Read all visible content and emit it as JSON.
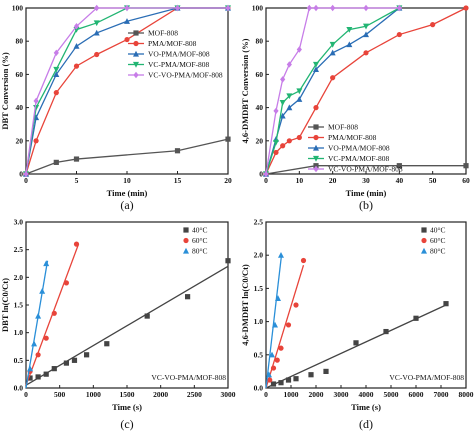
{
  "colors": {
    "MOF-808": "#555555",
    "PMA/MOF-808": "#e8443a",
    "VO-PMA/MOF-808": "#2a6db5",
    "VC-PMA/MOF-808": "#22b573",
    "VC-VO-PMA/MOF-808": "#c77de8",
    "40": "#444444",
    "60": "#e8443a",
    "80": "#2a8fd8"
  },
  "chart_data": [
    {
      "id": "a",
      "panel_label": "(a)",
      "type": "line",
      "xlabel": "Time (min)",
      "ylabel": "DBT Conversion (%)",
      "xlim": [
        0,
        20
      ],
      "ylim": [
        0,
        100
      ],
      "xticks": [
        0,
        5,
        10,
        15,
        20
      ],
      "yticks": [
        0,
        20,
        40,
        60,
        80,
        100
      ],
      "legend_position": "right",
      "series": [
        {
          "name": "MOF-808",
          "marker": "square",
          "color_key": "MOF-808",
          "x": [
            0,
            3,
            5,
            15,
            20
          ],
          "y": [
            0,
            7,
            9,
            14,
            21
          ]
        },
        {
          "name": "PMA/MOF-808",
          "marker": "circle",
          "color_key": "PMA/MOF-808",
          "x": [
            0,
            1,
            3,
            5,
            7,
            10,
            15,
            20
          ],
          "y": [
            0,
            20,
            49,
            65,
            72,
            81,
            100,
            100
          ]
        },
        {
          "name": "VO-PMA/MOF-808",
          "marker": "triangle-up",
          "color_key": "VO-PMA/MOF-808",
          "x": [
            0,
            1,
            3,
            5,
            7,
            10,
            15,
            20
          ],
          "y": [
            0,
            34,
            60,
            77,
            85,
            92,
            100,
            100
          ]
        },
        {
          "name": "VC-PMA/MOF-808",
          "marker": "triangle-down",
          "color_key": "VC-PMA/MOF-808",
          "x": [
            0,
            1,
            3,
            5,
            7,
            10,
            15,
            20
          ],
          "y": [
            0,
            40,
            63,
            87,
            91,
            100,
            100,
            100
          ]
        },
        {
          "name": "VC-VO-PMA/MOF-808",
          "marker": "diamond",
          "color_key": "VC-VO-PMA/MOF-808",
          "x": [
            0,
            1,
            3,
            5,
            7,
            10,
            15,
            20
          ],
          "y": [
            0,
            44,
            73,
            89,
            100,
            100,
            100,
            100
          ]
        }
      ]
    },
    {
      "id": "b",
      "panel_label": "(b)",
      "type": "line",
      "xlabel": "Time (min)",
      "ylabel": "4,6-DMDBT Conversion (%)",
      "xlim": [
        0,
        60
      ],
      "ylim": [
        0,
        100
      ],
      "xticks": [
        0,
        10,
        20,
        30,
        40,
        50,
        60
      ],
      "yticks": [
        0,
        20,
        40,
        60,
        80,
        100
      ],
      "legend_position": "bottom-right",
      "series": [
        {
          "name": "MOF-808",
          "marker": "square",
          "color_key": "MOF-808",
          "x": [
            0,
            15,
            40,
            60
          ],
          "y": [
            0,
            5,
            5,
            5
          ]
        },
        {
          "name": "PMA/MOF-808",
          "marker": "circle",
          "color_key": "PMA/MOF-808",
          "x": [
            0,
            3,
            5,
            7,
            10,
            15,
            20,
            30,
            40,
            50,
            60
          ],
          "y": [
            0,
            13,
            17,
            20,
            22,
            40,
            58,
            73,
            84,
            90,
            100
          ]
        },
        {
          "name": "VO-PMA/MOF-808",
          "marker": "triangle-up",
          "color_key": "VO-PMA/MOF-808",
          "x": [
            0,
            3,
            5,
            7,
            10,
            15,
            20,
            25,
            30,
            40
          ],
          "y": [
            0,
            21,
            35,
            40,
            45,
            63,
            73,
            78,
            84,
            100
          ]
        },
        {
          "name": "VC-PMA/MOF-808",
          "marker": "triangle-down",
          "color_key": "VC-PMA/MOF-808",
          "x": [
            0,
            3,
            5,
            7,
            10,
            15,
            20,
            25,
            30,
            40
          ],
          "y": [
            0,
            19,
            43,
            47,
            50,
            66,
            78,
            87,
            89,
            100
          ]
        },
        {
          "name": "VC-VO-PMA/MOF-808",
          "marker": "diamond",
          "color_key": "VC-VO-PMA/MOF-808",
          "x": [
            0,
            3,
            5,
            7,
            10,
            13,
            15,
            20,
            30,
            40
          ],
          "y": [
            0,
            38,
            57,
            66,
            75,
            100,
            100,
            100,
            100,
            100
          ]
        }
      ]
    },
    {
      "id": "c",
      "panel_label": "(c)",
      "type": "scatter",
      "xlabel": "Time (s)",
      "ylabel": "DBT ln(C0/Ct)",
      "xlim": [
        0,
        3000
      ],
      "ylim": [
        0,
        3.0
      ],
      "xticks": [
        0,
        500,
        1000,
        1500,
        2000,
        2500,
        3000
      ],
      "yticks": [
        0.0,
        0.5,
        1.0,
        1.5,
        2.0,
        2.5,
        3.0
      ],
      "ytick_labels": [
        "0.0",
        "0.5",
        "1.0",
        "1.5",
        "2.0",
        "2.5",
        "3.0"
      ],
      "legend_position": "top-right",
      "annotation": "VC-VO-PMA/MOF-808",
      "series": [
        {
          "name": "40°C",
          "marker": "square",
          "color_key": "40",
          "x": [
            60,
            180,
            300,
            420,
            600,
            720,
            900,
            1200,
            1800,
            2400,
            3000
          ],
          "y": [
            0.18,
            0.2,
            0.25,
            0.35,
            0.45,
            0.5,
            0.6,
            0.8,
            1.3,
            1.65,
            2.3
          ],
          "fit": [
            [
              0,
              0.05
            ],
            [
              3000,
              2.2
            ]
          ]
        },
        {
          "name": "60°C",
          "marker": "circle",
          "color_key": "60",
          "x": [
            60,
            180,
            300,
            420,
            600,
            750
          ],
          "y": [
            0.3,
            0.6,
            0.9,
            1.35,
            1.9,
            2.6
          ],
          "fit": [
            [
              0,
              0.05
            ],
            [
              780,
              2.6
            ]
          ]
        },
        {
          "name": "80°C",
          "marker": "triangle-up",
          "color_key": "80",
          "x": [
            60,
            120,
            180,
            240,
            300
          ],
          "y": [
            0.35,
            0.8,
            1.3,
            1.75,
            2.25
          ],
          "fit": [
            [
              0,
              0.0
            ],
            [
              320,
              2.3
            ]
          ]
        }
      ]
    },
    {
      "id": "d",
      "panel_label": "(d)",
      "type": "scatter",
      "xlabel": "Time (s)",
      "ylabel": "4,6-DMDBT ln(C0/Ct)",
      "xlim": [
        0,
        8000
      ],
      "ylim": [
        0,
        2.5
      ],
      "xticks": [
        0,
        1000,
        2000,
        3000,
        4000,
        5000,
        6000,
        7000,
        8000
      ],
      "yticks": [
        0.0,
        0.5,
        1.0,
        1.5,
        2.0,
        2.5
      ],
      "ytick_labels": [
        "0.0",
        "0.5",
        "1.0",
        "1.5",
        "2.0",
        "2.5"
      ],
      "legend_position": "top-right",
      "annotation": "VC-VO-PMA/MOF-808",
      "series": [
        {
          "name": "40°C",
          "marker": "square",
          "color_key": "40",
          "x": [
            300,
            600,
            900,
            1200,
            1800,
            2400,
            3600,
            4800,
            6000,
            7200
          ],
          "y": [
            0.06,
            0.08,
            0.12,
            0.14,
            0.2,
            0.25,
            0.68,
            0.85,
            1.05,
            1.27
          ],
          "fit": [
            [
              0,
              0.0
            ],
            [
              7200,
              1.25
            ]
          ]
        },
        {
          "name": "60°C",
          "marker": "circle",
          "color_key": "60",
          "x": [
            150,
            300,
            450,
            600,
            900,
            1200,
            1500
          ],
          "y": [
            0.12,
            0.3,
            0.42,
            0.6,
            0.95,
            1.25,
            1.92
          ],
          "fit": [
            [
              0,
              0.0
            ],
            [
              1500,
              1.85
            ]
          ]
        },
        {
          "name": "80°C",
          "marker": "triangle-up",
          "color_key": "80",
          "x": [
            120,
            240,
            360,
            480,
            600
          ],
          "y": [
            0.2,
            0.5,
            0.95,
            1.35,
            2.0
          ],
          "fit": [
            [
              0,
              0.0
            ],
            [
              620,
              2.0
            ]
          ]
        }
      ]
    }
  ]
}
